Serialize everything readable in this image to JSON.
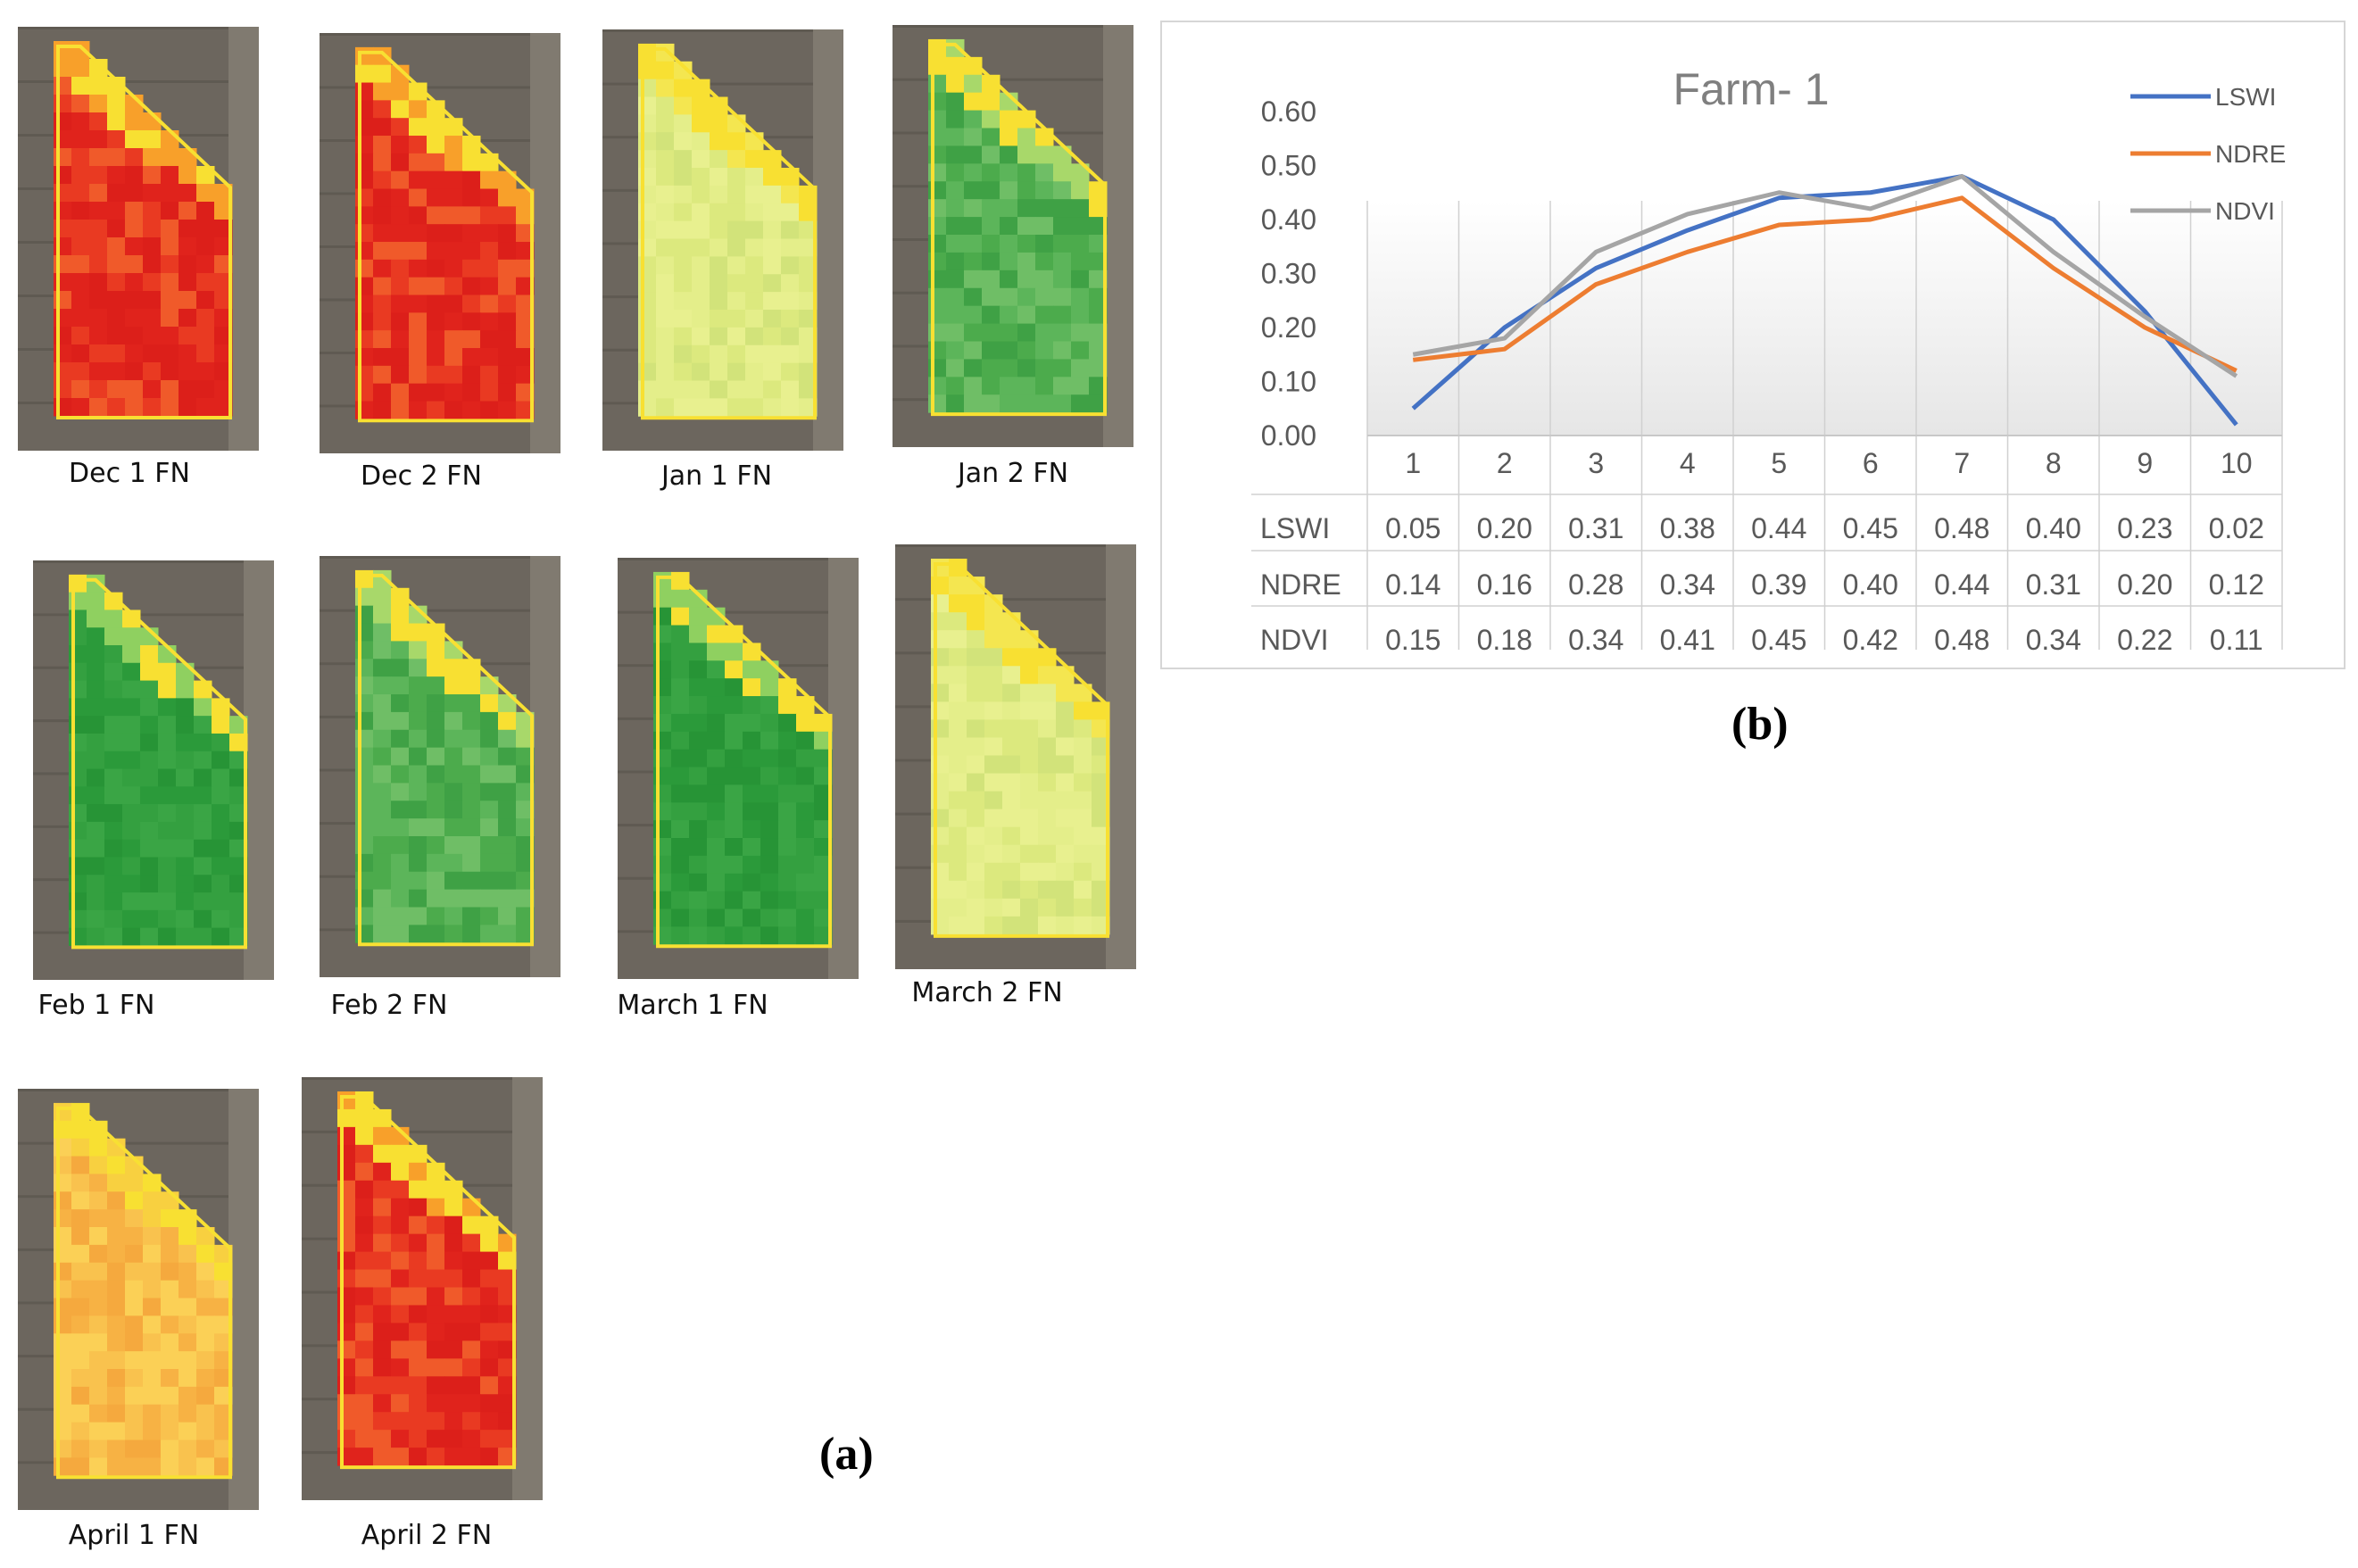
{
  "panel_a": {
    "label": "(a)",
    "tiles": [
      {
        "caption": "Dec 1 FN",
        "palette": "red"
      },
      {
        "caption": "Dec 2 FN",
        "palette": "red"
      },
      {
        "caption": "Jan 1 FN",
        "palette": "lightyellow"
      },
      {
        "caption": "Jan 2 FN",
        "palette": "green"
      },
      {
        "caption": "Feb 1 FN",
        "palette": "darkgreen"
      },
      {
        "caption": "Feb 2 FN",
        "palette": "green"
      },
      {
        "caption": "March 1 FN",
        "palette": "darkgreen"
      },
      {
        "caption": "March 2 FN",
        "palette": "lightyellow"
      },
      {
        "caption": "April 1 FN",
        "palette": "orange"
      },
      {
        "caption": "April 2 FN",
        "palette": "red"
      }
    ]
  },
  "panel_b": {
    "label": "(b)"
  },
  "colors": {
    "LSWI": "#4472c4",
    "NDRE": "#ed7d31",
    "NDVI": "#a5a5a5",
    "red": "#e0231c",
    "orange": "#f7b244",
    "yellow": "#f8e032",
    "lightyellow": "#dce97e",
    "green": "#4cab4c",
    "darkgreen": "#2b9a3a",
    "soil": "#6c665e"
  },
  "chart_data": {
    "type": "line",
    "title": "Farm- 1",
    "categories": [
      "1",
      "2",
      "3",
      "4",
      "5",
      "6",
      "7",
      "8",
      "9",
      "10"
    ],
    "ylim": [
      0,
      0.6
    ],
    "yticks": [
      "0.00",
      "0.10",
      "0.20",
      "0.30",
      "0.40",
      "0.50",
      "0.60"
    ],
    "legend_position": "top-right",
    "series": [
      {
        "name": "LSWI",
        "values": [
          0.05,
          0.2,
          0.31,
          0.38,
          0.44,
          0.45,
          0.48,
          0.4,
          0.23,
          0.02
        ],
        "labels": [
          "0.05",
          "0.20",
          "0.31",
          "0.38",
          "0.44",
          "0.45",
          "0.48",
          "0.40",
          "0.23",
          "0.02"
        ]
      },
      {
        "name": "NDRE",
        "values": [
          0.14,
          0.16,
          0.28,
          0.34,
          0.39,
          0.4,
          0.44,
          0.31,
          0.2,
          0.12
        ],
        "labels": [
          "0.14",
          "0.16",
          "0.28",
          "0.34",
          "0.39",
          "0.40",
          "0.44",
          "0.31",
          "0.20",
          "0.12"
        ]
      },
      {
        "name": "NDVI",
        "values": [
          0.15,
          0.18,
          0.34,
          0.41,
          0.45,
          0.42,
          0.48,
          0.34,
          0.22,
          0.11
        ],
        "labels": [
          "0.15",
          "0.18",
          "0.34",
          "0.41",
          "0.45",
          "0.42",
          "0.48",
          "0.34",
          "0.22",
          "0.11"
        ]
      }
    ]
  }
}
